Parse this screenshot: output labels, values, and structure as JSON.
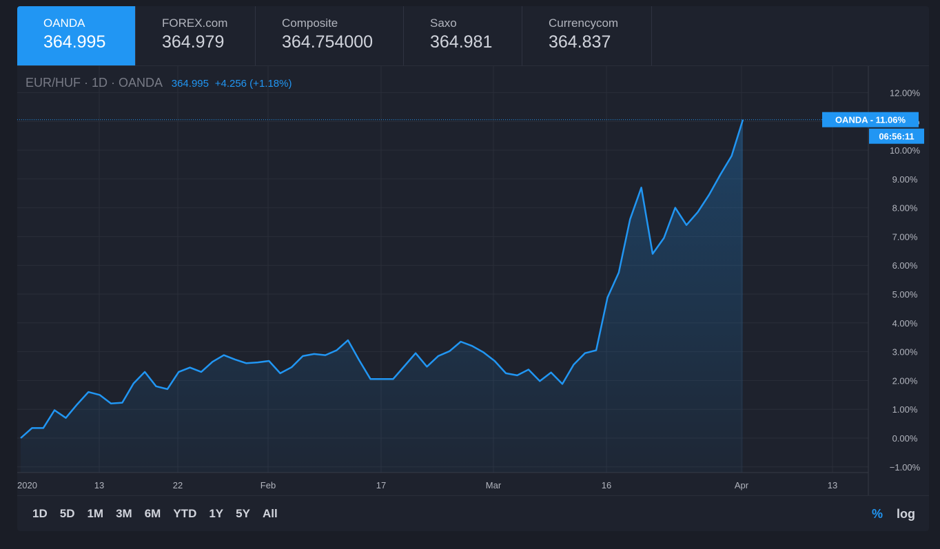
{
  "tabs": [
    {
      "name": "OANDA",
      "value": "364.995"
    },
    {
      "name": "FOREX.com",
      "value": "364.979"
    },
    {
      "name": "Composite",
      "value": "364.754000"
    },
    {
      "name": "Saxo",
      "value": "364.981"
    },
    {
      "name": "Currencycom",
      "value": "364.837"
    }
  ],
  "legend": {
    "symbol": "EUR/HUF · 1D · OANDA",
    "price": "364.995",
    "change": "+4.256 (+1.18%)"
  },
  "price_label": {
    "text": "OANDA - 11.06%",
    "countdown": "06:56:11"
  },
  "range_buttons": [
    "1D",
    "5D",
    "1M",
    "3M",
    "6M",
    "YTD",
    "1Y",
    "5Y",
    "All"
  ],
  "scale_buttons": {
    "percent": "%",
    "log": "log"
  },
  "colors": {
    "accent": "#2196f3",
    "background": "#1e222d",
    "grid": "#2a2e39"
  },
  "chart_data": {
    "type": "area",
    "series": [
      {
        "name": "OANDA",
        "values": [
          0.0,
          0.35,
          0.35,
          0.97,
          0.7,
          1.17,
          1.6,
          1.5,
          1.2,
          1.23,
          1.9,
          2.3,
          1.8,
          1.7,
          2.3,
          2.45,
          2.3,
          2.65,
          2.88,
          2.73,
          2.6,
          2.63,
          2.68,
          2.25,
          2.46,
          2.85,
          2.92,
          2.88,
          3.05,
          3.4,
          2.7,
          2.05,
          2.05,
          2.05,
          2.5,
          2.95,
          2.48,
          2.85,
          3.02,
          3.35,
          3.2,
          2.98,
          2.68,
          2.25,
          2.18,
          2.38,
          1.98,
          2.28,
          1.88,
          2.55,
          2.95,
          3.05,
          4.88,
          5.75,
          7.6,
          8.7,
          6.4,
          6.95,
          8.0,
          7.4,
          7.85,
          8.45,
          9.15,
          9.8,
          11.06
        ]
      }
    ],
    "ylim": [
      -1.0,
      12.0
    ],
    "y_ticks": [
      "−1.00%",
      "0.00%",
      "1.00%",
      "2.00%",
      "3.00%",
      "4.00%",
      "5.00%",
      "6.00%",
      "7.00%",
      "8.00%",
      "9.00%",
      "10.00%",
      "11.00%",
      "12.00%"
    ],
    "x_ticks": [
      "2020",
      "13",
      "22",
      "Feb",
      "17",
      "Mar",
      "16",
      "Apr",
      "13"
    ],
    "grid": true
  }
}
